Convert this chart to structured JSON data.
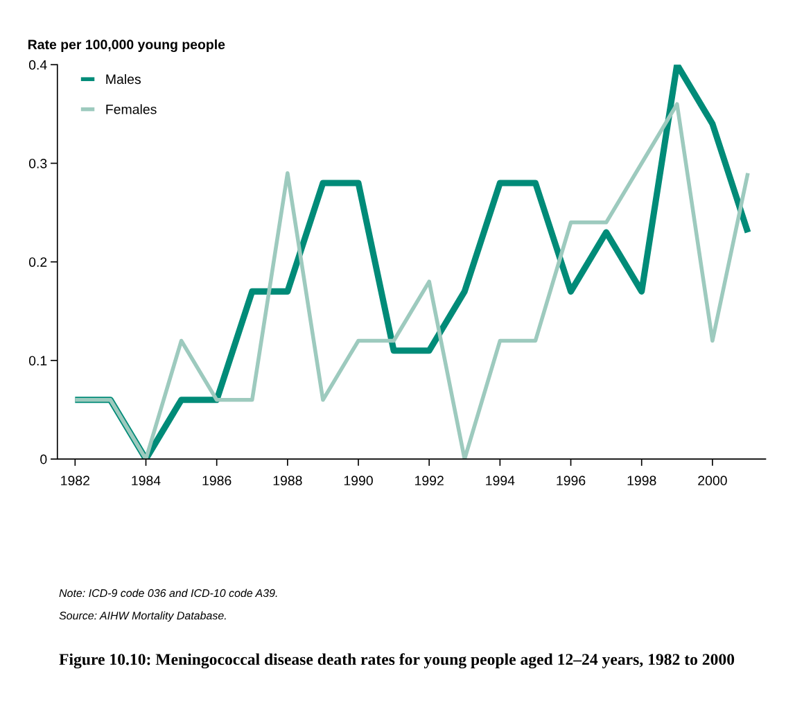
{
  "chart_data": {
    "type": "line",
    "title": "Figure 10.10: Meningococcal disease death rates for young people aged 12–24 years, 1982 to 2000",
    "ylabel": "Rate per 100,000 young people",
    "annotations": [
      "Note: ICD-9 code 036 and ICD-10 code A39.",
      "Source: AIHW Mortality Database."
    ],
    "x": [
      1982,
      1983,
      1984,
      1985,
      1986,
      1987,
      1988,
      1989,
      1990,
      1991,
      1992,
      1993,
      1994,
      1995,
      1996,
      1997,
      1998,
      1999,
      2000,
      2001
    ],
    "series": [
      {
        "name": "Males",
        "color": "#008b78",
        "values": [
          0.06,
          0.06,
          0,
          0.06,
          0.06,
          0.17,
          0.17,
          0.28,
          0.28,
          0.11,
          0.11,
          0.17,
          0.28,
          0.28,
          0.17,
          0.23,
          0.17,
          0.4,
          0.34,
          0.23
        ]
      },
      {
        "name": "Females",
        "color": "#9dcabe",
        "values": [
          0.06,
          0.06,
          0,
          0.12,
          0.06,
          0.06,
          0.29,
          0.06,
          0.12,
          0.12,
          0.18,
          0,
          0.12,
          0.12,
          0.24,
          0.24,
          0.3,
          0.36,
          0.12,
          0.29
        ]
      }
    ],
    "xlim": [
      1981.5,
      2001.5
    ],
    "ylim": [
      0,
      0.4
    ],
    "xticks": [
      1982,
      1984,
      1986,
      1988,
      1990,
      1992,
      1994,
      1996,
      1998,
      2000
    ],
    "yticks": [
      0,
      0.1,
      0.2,
      0.3,
      0.4
    ],
    "grid": false,
    "legend": "top left",
    "marker": "none",
    "line_style": "solid"
  }
}
